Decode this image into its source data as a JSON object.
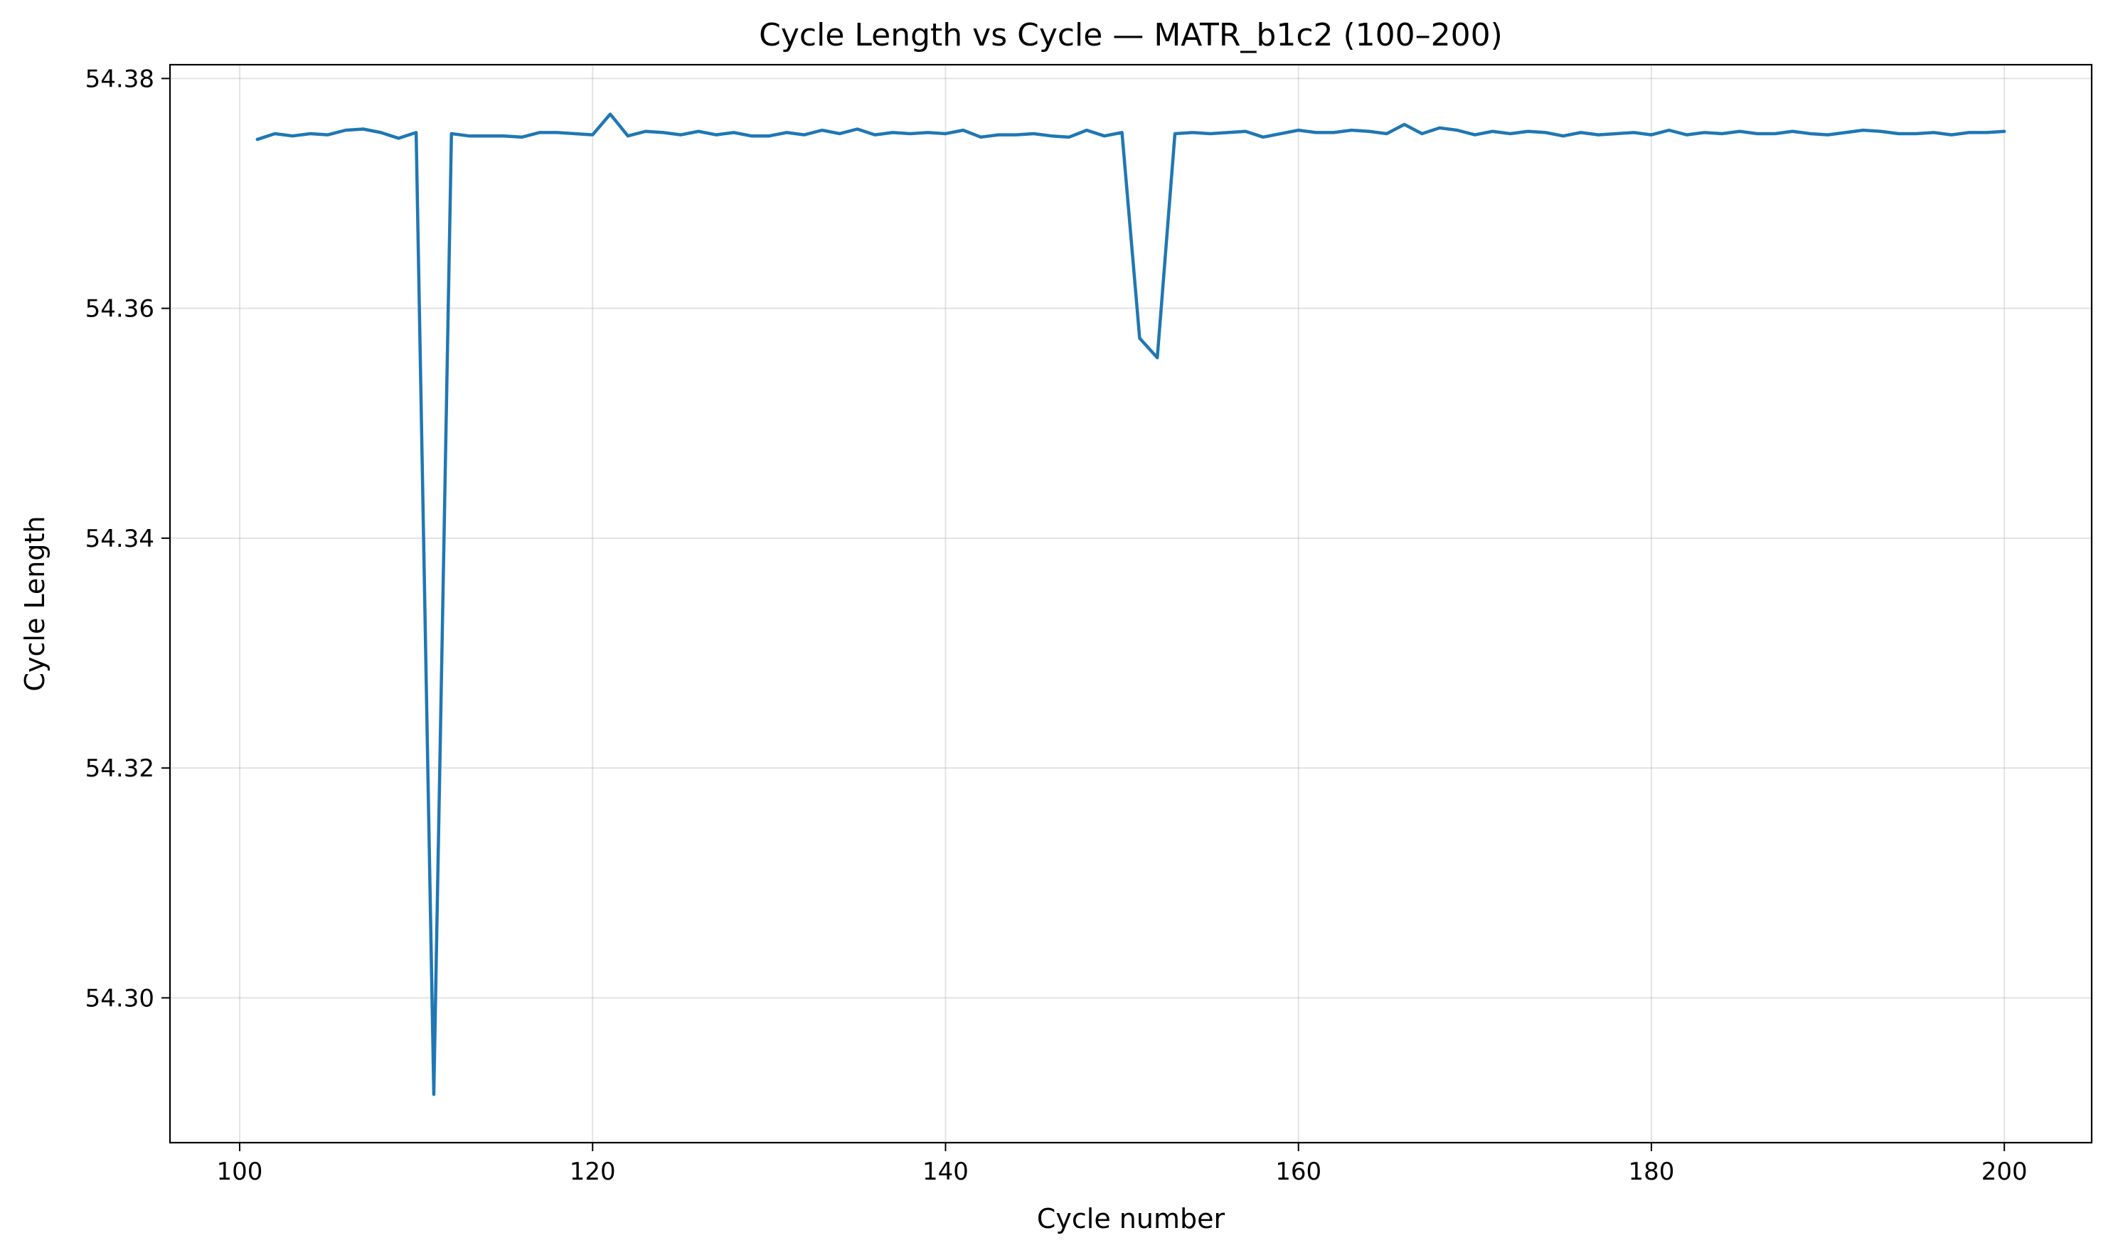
{
  "chart_data": {
    "type": "line",
    "title": "Cycle Length vs Cycle — MATR_b1c2 (100–200)",
    "xlabel": "Cycle number",
    "ylabel": "Cycle Length",
    "xlim": [
      96.05,
      204.95
    ],
    "ylim": [
      54.2874,
      54.3812
    ],
    "xticks": [
      100,
      120,
      140,
      160,
      180,
      200
    ],
    "yticks": [
      54.3,
      54.32,
      54.34,
      54.36,
      54.38
    ],
    "xtick_labels": [
      "100",
      "120",
      "140",
      "160",
      "180",
      "200"
    ],
    "ytick_labels": [
      "54.30",
      "54.32",
      "54.34",
      "54.36",
      "54.38"
    ],
    "grid": true,
    "colors": {
      "line": "#1f77b4",
      "grid": "#b0b0b0",
      "axes": "#000000"
    },
    "series": [
      {
        "x": [
          101,
          102,
          103,
          104,
          105,
          106,
          107,
          108,
          109,
          110,
          111,
          112,
          113,
          114,
          115,
          116,
          117,
          118,
          119,
          120,
          121,
          122,
          123,
          124,
          125,
          126,
          127,
          128,
          129,
          130,
          131,
          132,
          133,
          134,
          135,
          136,
          137,
          138,
          139,
          140,
          141,
          142,
          143,
          144,
          145,
          146,
          147,
          148,
          149,
          150,
          151,
          152,
          153,
          154,
          155,
          156,
          157,
          158,
          159,
          160,
          161,
          162,
          163,
          164,
          165,
          166,
          167,
          168,
          169,
          170,
          171,
          172,
          173,
          174,
          175,
          176,
          177,
          178,
          179,
          180,
          181,
          182,
          183,
          184,
          185,
          186,
          187,
          188,
          189,
          190,
          191,
          192,
          193,
          194,
          195,
          196,
          197,
          198,
          199,
          200
        ],
        "values": [
          54.3747,
          54.3752,
          54.375,
          54.3752,
          54.3751,
          54.3755,
          54.3756,
          54.3753,
          54.3748,
          54.3753,
          54.2916,
          54.3752,
          54.375,
          54.375,
          54.375,
          54.3749,
          54.3753,
          54.3753,
          54.3752,
          54.3751,
          54.3769,
          54.375,
          54.3754,
          54.3753,
          54.3751,
          54.3754,
          54.3751,
          54.3753,
          54.375,
          54.375,
          54.3753,
          54.3751,
          54.3755,
          54.3752,
          54.3756,
          54.3751,
          54.3753,
          54.3752,
          54.3753,
          54.3752,
          54.3755,
          54.3749,
          54.3751,
          54.3751,
          54.3752,
          54.375,
          54.3749,
          54.3755,
          54.375,
          54.3753,
          54.3574,
          54.3557,
          54.3752,
          54.3753,
          54.3752,
          54.3753,
          54.3754,
          54.3749,
          54.3752,
          54.3755,
          54.3753,
          54.3753,
          54.3755,
          54.3754,
          54.3752,
          54.376,
          54.3752,
          54.3757,
          54.3755,
          54.3751,
          54.3754,
          54.3752,
          54.3754,
          54.3753,
          54.375,
          54.3753,
          54.3751,
          54.3752,
          54.3753,
          54.3751,
          54.3755,
          54.3751,
          54.3753,
          54.3752,
          54.3754,
          54.3752,
          54.3752,
          54.3754,
          54.3752,
          54.3751,
          54.3753,
          54.3755,
          54.3754,
          54.3752,
          54.3752,
          54.3753,
          54.3751,
          54.3753,
          54.3753,
          54.3754
        ]
      }
    ]
  }
}
